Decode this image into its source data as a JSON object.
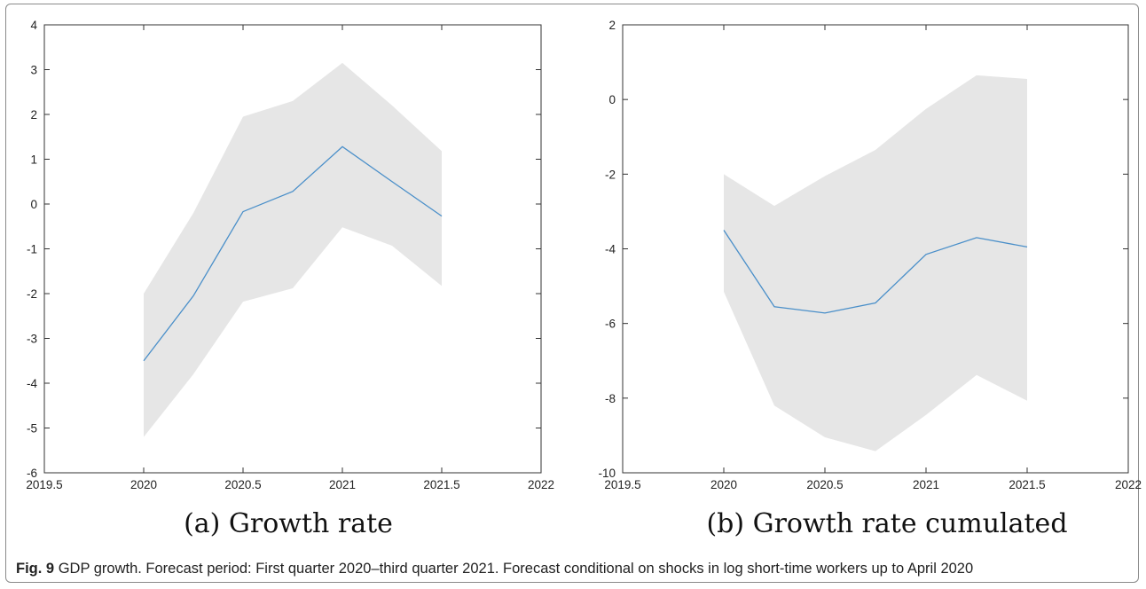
{
  "figure": {
    "label": "Fig. 9",
    "caption": "GDP growth. Forecast period: First quarter 2020–third quarter 2021. Forecast conditional on shocks in log short-time workers up to April 2020"
  },
  "colors": {
    "line": "#4a8fc9",
    "band": "#e6e6e6",
    "axis": "#333333"
  },
  "chart_data": [
    {
      "type": "area",
      "panel_label": "(a) Growth rate",
      "x": [
        2020,
        2020.25,
        2020.5,
        2020.75,
        2021,
        2021.25,
        2021.5
      ],
      "series": [
        {
          "values": [
            -3.5,
            -2.05,
            -0.17,
            0.28,
            1.28,
            0.5,
            -0.27
          ]
        }
      ],
      "band": {
        "upper": [
          -2.0,
          -0.2,
          1.95,
          2.3,
          3.15,
          2.2,
          1.18
        ],
        "lower": [
          -5.2,
          -3.8,
          -2.18,
          -1.88,
          -0.52,
          -0.93,
          -1.83
        ]
      },
      "xlim": [
        2019.5,
        2022
      ],
      "ylim": [
        -6,
        4
      ],
      "xticks": [
        2019.5,
        2020,
        2020.5,
        2021,
        2021.5,
        2022
      ],
      "xtick_labels": [
        "2019.5",
        "2020",
        "2020.5",
        "2021",
        "2021.5",
        "2022"
      ],
      "yticks": [
        -6,
        -5,
        -4,
        -3,
        -2,
        -1,
        0,
        1,
        2,
        3,
        4
      ],
      "ytick_labels": [
        "-6",
        "-5",
        "-4",
        "-3",
        "-2",
        "-1",
        "0",
        "1",
        "2",
        "3",
        "4"
      ],
      "grid": false,
      "box": true
    },
    {
      "type": "area",
      "panel_label": "(b) Growth rate cumulated",
      "x": [
        2020,
        2020.25,
        2020.5,
        2020.75,
        2021,
        2021.25,
        2021.5
      ],
      "series": [
        {
          "values": [
            -3.5,
            -5.55,
            -5.72,
            -5.45,
            -4.15,
            -3.7,
            -3.95
          ]
        }
      ],
      "band": {
        "upper": [
          -2.0,
          -2.85,
          -2.05,
          -1.35,
          -0.25,
          0.65,
          0.55
        ],
        "lower": [
          -5.15,
          -8.2,
          -9.05,
          -9.42,
          -8.45,
          -7.38,
          -8.07
        ]
      },
      "xlim": [
        2019.5,
        2022
      ],
      "ylim": [
        -10,
        2
      ],
      "xticks": [
        2019.5,
        2020,
        2020.5,
        2021,
        2021.5,
        2022
      ],
      "xtick_labels": [
        "2019.5",
        "2020",
        "2020.5",
        "2021",
        "2021.5",
        "2022"
      ],
      "yticks": [
        -10,
        -8,
        -6,
        -4,
        -2,
        0,
        2
      ],
      "ytick_labels": [
        "-10",
        "-8",
        "-6",
        "-4",
        "-2",
        "0",
        "2"
      ],
      "grid": false,
      "box": true
    }
  ]
}
